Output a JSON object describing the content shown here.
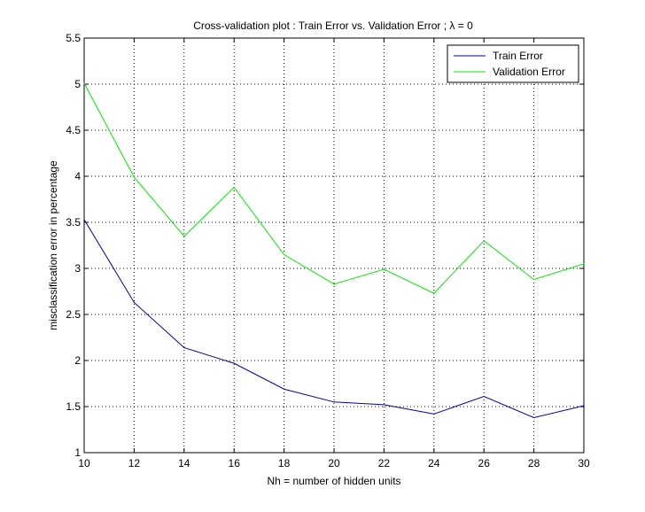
{
  "chart_data": {
    "type": "line",
    "title": "Cross-validation plot : Train Error vs. Validation Error ; λ = 0",
    "xlabel": "Nh = number of hidden units",
    "ylabel": "misclassification error in percentage",
    "xlim": [
      10,
      30
    ],
    "ylim": [
      1,
      5.5
    ],
    "xticks": [
      10,
      12,
      14,
      16,
      18,
      20,
      22,
      24,
      26,
      28,
      30
    ],
    "yticks": [
      1,
      1.5,
      2,
      2.5,
      3,
      3.5,
      4,
      4.5,
      5,
      5.5
    ],
    "ytick_labels": [
      "1",
      "1.5",
      "2",
      "2.5",
      "3",
      "3.5",
      "4",
      "4.5",
      "5",
      "5.5"
    ],
    "grid": true,
    "legend_position": "top-right",
    "x": [
      10,
      12,
      14,
      16,
      18,
      20,
      22,
      24,
      26,
      28,
      30
    ],
    "series": [
      {
        "name": "Train Error",
        "color": "#0000aa",
        "values": [
          3.53,
          2.63,
          2.14,
          1.97,
          1.69,
          1.55,
          1.52,
          1.42,
          1.61,
          1.38,
          1.51
        ]
      },
      {
        "name": "Validation Error",
        "color": "#00ee00",
        "values": [
          5.01,
          3.99,
          3.35,
          3.88,
          3.15,
          2.83,
          2.99,
          2.73,
          3.3,
          2.88,
          3.05
        ]
      }
    ]
  }
}
